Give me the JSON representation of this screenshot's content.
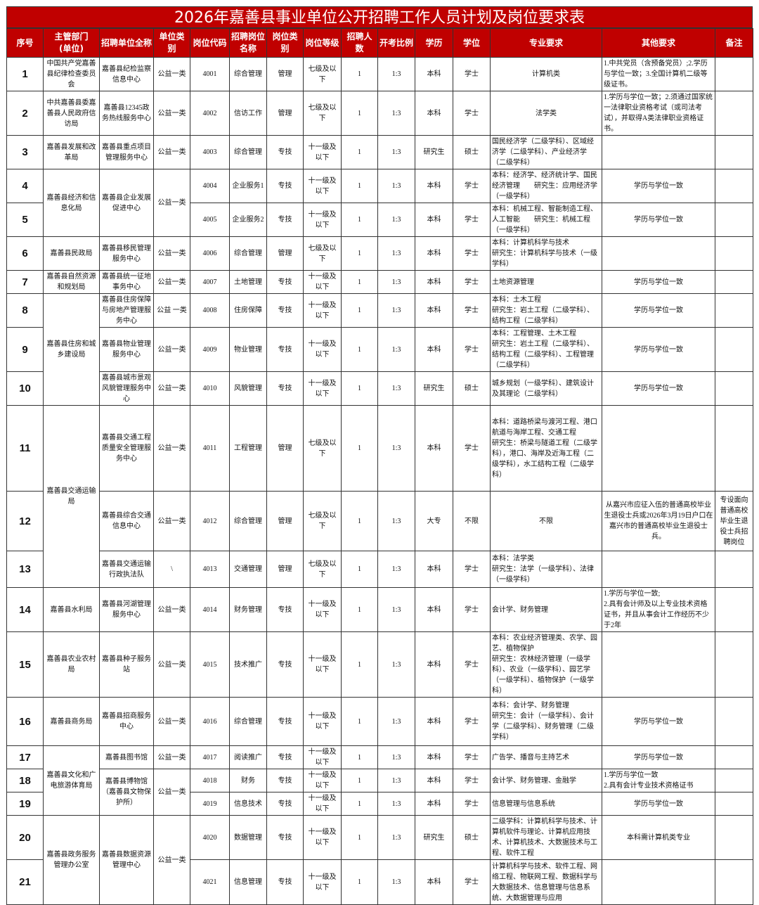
{
  "title": "2026年嘉善县事业单位公开招聘工作人员计划及岗位要求表",
  "theme": {
    "header_bg": "#c00000",
    "header_text": "#ffffff"
  },
  "columns": [
    "序号",
    "主管部门\n(单位)",
    "招聘单位全称",
    "单位类别",
    "岗位代码",
    "招聘岗位名称",
    "岗位类别",
    "岗位等级",
    "招聘人数",
    "开考比例",
    "学历",
    "学位",
    "专业要求",
    "其他要求",
    "备注"
  ],
  "rows": [
    {
      "seq": "1",
      "dept": "中国共产党嘉善县纪律检查委员会",
      "unit": "嘉善县纪检监察信息中心",
      "unit_type": "公益一类",
      "code": "4001",
      "post": "综合管理",
      "category": "管理",
      "grade": "七级及以下",
      "count": "1",
      "ratio": "1:3",
      "edu": "本科",
      "degree": "学士",
      "major": "计算机类",
      "other": "1.中共党员（含预备党员）;2.学历与学位一致；3.全国计算机二级等级证书。",
      "note": ""
    },
    {
      "seq": "2",
      "dept": "中共嘉善县委嘉善县人民政府信访局",
      "unit": "嘉善县12345政务热线服务中心",
      "unit_type": "公益一类",
      "code": "4002",
      "post": "信访工作",
      "category": "管理",
      "grade": "七级及以下",
      "count": "1",
      "ratio": "1:3",
      "edu": "本科",
      "degree": "学士",
      "major": "法学类",
      "other": "1.学历与学位一致；2.须通过国家统一法律职业资格考试（或司法考试），并取得A类法律职业资格证书。",
      "note": ""
    },
    {
      "seq": "3",
      "dept": "嘉善县发展和改革局",
      "unit": "嘉善县重点项目管理服务中心",
      "unit_type": "公益一类",
      "code": "4003",
      "post": "综合管理",
      "category": "专技",
      "grade": "十一级及以下",
      "count": "1",
      "ratio": "1:3",
      "edu": "研究生",
      "degree": "硕士",
      "major": "国民经济学（二级学科）、区域经济学（二级学科）、产业经济学（二级学科）",
      "other": "",
      "note": ""
    },
    {
      "seq": "4",
      "dept": "嘉善县经济和信息化局",
      "dept_span": 2,
      "unit": "嘉善县企业发展促进中心",
      "unit_span": 2,
      "unit_type": "公益一类",
      "type_span": 2,
      "code": "4004",
      "post": "企业服务1",
      "category": "专技",
      "grade": "十一级及以下",
      "count": "1",
      "ratio": "1:3",
      "edu": "本科",
      "degree": "学士",
      "major": "本科：经济学、经济统计学、国民经济管理　　研究生：应用经济学（一级学科）",
      "other": "学历与学位一致",
      "note": ""
    },
    {
      "seq": "5",
      "code": "4005",
      "post": "企业服务2",
      "category": "专技",
      "grade": "十一级及以下",
      "count": "1",
      "ratio": "1:3",
      "edu": "本科",
      "degree": "学士",
      "major": "本科：机械工程、智能制造工程、人工智能　　研究生：机械工程（一级学科）",
      "other": "学历与学位一致",
      "note": ""
    },
    {
      "seq": "6",
      "dept": "嘉善县民政局",
      "unit": "嘉善县移民管理服务中心",
      "unit_type": "公益一类",
      "code": "4006",
      "post": "综合管理",
      "category": "管理",
      "grade": "七级及以下",
      "count": "1",
      "ratio": "1:3",
      "edu": "本科",
      "degree": "学士",
      "major": "本科：计算机科学与技术\n研究生：计算机科学与技术（一级学科）",
      "other": "",
      "note": ""
    },
    {
      "seq": "7",
      "dept": "嘉善县自然资源和规划局",
      "unit": "嘉善县统一征地事务中心",
      "unit_type": "公益一类",
      "code": "4007",
      "post": "土地管理",
      "category": "专技",
      "grade": "十一级及以下",
      "count": "1",
      "ratio": "1:3",
      "edu": "本科",
      "degree": "学士",
      "major": "土地资源管理",
      "other": "学历与学位一致",
      "note": ""
    },
    {
      "seq": "8",
      "dept": "嘉善县住房和城乡建设局",
      "dept_span": 3,
      "unit": "嘉善县住房保障与房地产管理服务中心",
      "unit_type": "公益 一类",
      "code": "4008",
      "post": "住房保障",
      "category": "专技",
      "grade": "十一级及以下",
      "count": "1",
      "ratio": "1:3",
      "edu": "本科",
      "degree": "学士",
      "major": "本科：土木工程\n研究生：岩土工程（二级学科）、结构工程（二级学科）",
      "other": "学历与学位一致",
      "note": ""
    },
    {
      "seq": "9",
      "unit": "嘉善县物业管理服务中心",
      "unit_type": "公益一类",
      "code": "4009",
      "post": "物业管理",
      "category": "专技",
      "grade": "十一级及以下",
      "count": "1",
      "ratio": "1:3",
      "edu": "本科",
      "degree": "学士",
      "major": "本科：工程管理、土木工程\n研究生：岩土工程（二级学科）、结构工程（二级学科）、工程管理（二级学科）",
      "other": "学历与学位一致",
      "note": ""
    },
    {
      "seq": "10",
      "unit": "嘉善县城市景观风貌管理服务中心",
      "unit_type": "公益一类",
      "code": "4010",
      "post": "风貌管理",
      "category": "专技",
      "grade": "十一级及以下",
      "count": "1",
      "ratio": "1:3",
      "edu": "研究生",
      "degree": "硕士",
      "major": "城乡规划（一级学科）、建筑设计及其理论（二级学科）",
      "other": "学历与学位一致",
      "note": ""
    },
    {
      "seq": "11",
      "dept": "嘉善县交通运输局",
      "dept_span": 3,
      "unit": "嘉善县交通工程质量安全管理服务中心",
      "unit_type": "公益一类",
      "code": "4011",
      "post": "工程管理",
      "category": "管理",
      "grade": "七级及以下",
      "count": "1",
      "ratio": "1:3",
      "edu": "本科",
      "degree": "学士",
      "major": "本科：道路桥梁与渡河工程、港口航道与海岸工程、交通工程\n研究生：桥梁与隧道工程（二级学科），港口、海岸及近海工程（二级学科），水工结构工程（二级学科）",
      "other": "",
      "note": ""
    },
    {
      "seq": "12",
      "unit": "嘉善县综合交通信息中心",
      "unit_type": "公益一类",
      "code": "4012",
      "post": "综合管理",
      "category": "管理",
      "grade": "七级及以下",
      "count": "1",
      "ratio": "1:3",
      "edu": "大专",
      "degree": "不限",
      "major": "不限",
      "other": "从嘉兴市应征入伍的普通高校毕业生退役士兵或2026年3月19日户口在嘉兴市的普通高校毕业生退役士兵。",
      "note": "专设面向普通高校毕业生退役士兵招聘岗位"
    },
    {
      "seq": "13",
      "unit": "嘉善县交通运输行政执法队",
      "unit_type": "\\",
      "code": "4013",
      "post": "交通管理",
      "category": "管理",
      "grade": "七级及以下",
      "count": "1",
      "ratio": "1:3",
      "edu": "本科",
      "degree": "学士",
      "major": "本科：法学类\n研究生：法学（一级学科）、法律（一级学科）",
      "other": "",
      "note": ""
    },
    {
      "seq": "14",
      "dept": "嘉善县水利局",
      "unit": "嘉善县河湖管理服务中心",
      "unit_type": "公益一类",
      "code": "4014",
      "post": "财务管理",
      "category": "专技",
      "grade": "十一级及以下",
      "count": "1",
      "ratio": "1:3",
      "edu": "本科",
      "degree": "学士",
      "major": "会计学、财务管理",
      "other": "1.学历与学位一致;\n2.具有会计师及以上专业技术资格证书，并且从事会计工作经历不少于2年",
      "note": ""
    },
    {
      "seq": "15",
      "dept": "嘉善县农业农村局",
      "unit": "嘉善县种子服务站",
      "unit_type": "公益一类",
      "code": "4015",
      "post": "技术推广",
      "category": "专技",
      "grade": "十一级及以下",
      "count": "1",
      "ratio": "1:3",
      "edu": "本科",
      "degree": "学士",
      "major": "本科：农业经济管理类、农学、园艺、植物保护\n研究生：农林经济管理（一级学科）、农业（一级学科）、园艺学（一级学科）、植物保护（一级学科）",
      "other": "",
      "note": ""
    },
    {
      "seq": "16",
      "dept": "嘉善县商务局",
      "unit": "嘉善县招商服务中心",
      "unit_type": "公益一类",
      "code": "4016",
      "post": "综合管理",
      "category": "专技",
      "grade": "十一级及以下",
      "count": "1",
      "ratio": "1:3",
      "edu": "本科",
      "degree": "学士",
      "major": "本科：会计学、财务管理\n研究生：会计（一级学科）、会计学（二级学科）、财务管理（二级学科）",
      "other": "学历与学位一致",
      "note": ""
    },
    {
      "seq": "17",
      "dept": "嘉善县文化和广电旅游体育局",
      "dept_span": 3,
      "unit": "嘉善县图书馆",
      "unit_type": "公益一类",
      "code": "4017",
      "post": "阅读推广",
      "category": "专技",
      "grade": "十一级及以下",
      "count": "1",
      "ratio": "1:3",
      "edu": "本科",
      "degree": "学士",
      "major": "广告学、播音与主持艺术",
      "other": "学历与学位一致",
      "note": ""
    },
    {
      "seq": "18",
      "unit": "嘉善县博物馆（嘉善县文物保护所）",
      "unit_span": 2,
      "unit_type": "公益一类",
      "type_span": 2,
      "code": "4018",
      "post": "财务",
      "category": "专技",
      "grade": "十一级及以下",
      "count": "1",
      "ratio": "1:3",
      "edu": "本科",
      "degree": "学士",
      "major": "会计学、财务管理、金融学",
      "other": "1.学历与学位一致\n2.具有会计专业技术资格证书",
      "note": ""
    },
    {
      "seq": "19",
      "code": "4019",
      "post": "信息技术",
      "category": "专技",
      "grade": "十一级及以下",
      "count": "1",
      "ratio": "1:3",
      "edu": "本科",
      "degree": "学士",
      "major": "信息管理与信息系统",
      "other": "学历与学位一致",
      "note": ""
    },
    {
      "seq": "20",
      "dept": "嘉善县政务服务管理办公室",
      "dept_span": 2,
      "unit": "嘉善县数据资源管理中心",
      "unit_span": 2,
      "unit_type": "公益一类",
      "type_span": 2,
      "code": "4020",
      "post": "数据管理",
      "category": "专技",
      "grade": "十一级及以下",
      "count": "1",
      "ratio": "1:3",
      "edu": "研究生",
      "degree": "硕士",
      "major": "二级学科：计算机科学与技术、计算机软件与理论、计算机应用技术、计算机技术、大数据技术与工程、软件工程",
      "other": "本科需计算机类专业",
      "note": ""
    },
    {
      "seq": "21",
      "code": "4021",
      "post": "信息管理",
      "category": "专技",
      "grade": "十一级及以下",
      "count": "1",
      "ratio": "1:3",
      "edu": "本科",
      "degree": "学士",
      "major": "计算机科学与技术、软件工程、网络工程、物联网工程、数据科学与大数据技术、信息管理与信息系统、大数据管理与应用",
      "other": "",
      "note": ""
    }
  ]
}
